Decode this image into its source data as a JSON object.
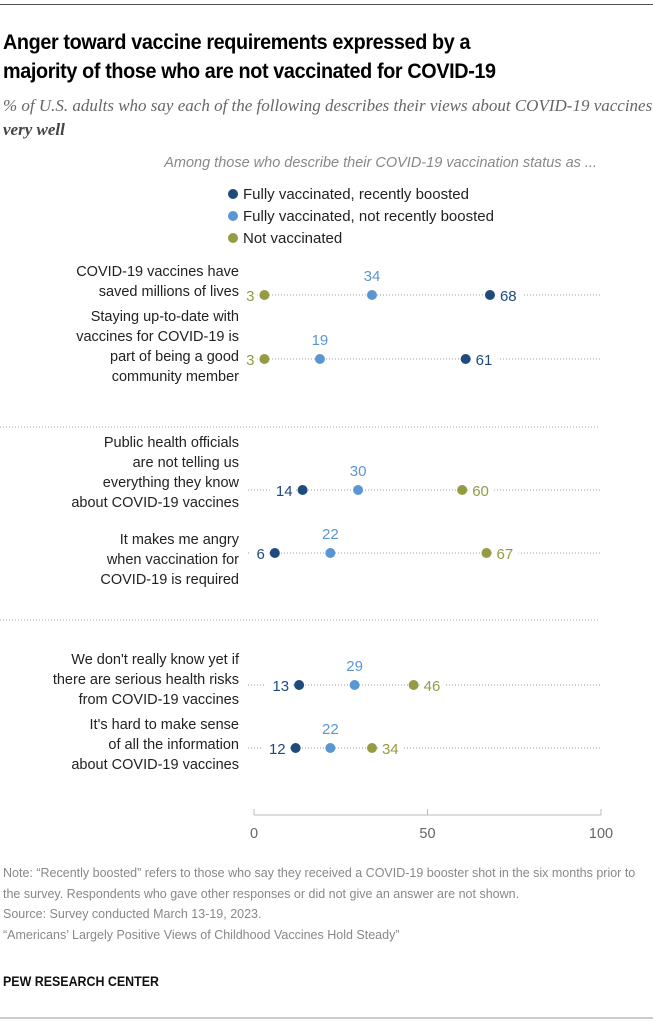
{
  "title": "Anger toward vaccine requirements expressed by a majority of those who are not vaccinated for COVID-19",
  "title_lines": [
    "Anger toward vaccine requirements expressed by a",
    "majority of those who are not vaccinated for COVID-19"
  ],
  "subtitle_prefix": "% of U.S. adults who say each of the following describes their views about COVID-19 vaccines ",
  "subtitle_bold": "very well",
  "legend_heading": "Among those who describe their COVID-19 vaccination status as ...",
  "colors": {
    "boosted": "#1f4a7c",
    "not_boosted": "#5b96d4",
    "not_vaccinated": "#949b43",
    "dots": "#999999"
  },
  "notes": {
    "note": "Note: “Recently boosted” refers to those who say they received a COVID-19 booster shot in the six months prior to the survey. Respondents who gave other responses or did not give an answer are not shown.",
    "source": "Source: Survey conducted March 13-19, 2023.",
    "report": "“Americans’ Largely Positive Views of Childhood Vaccines Hold Steady”",
    "brand": "PEW RESEARCH CENTER"
  },
  "chart_data": {
    "type": "scatter",
    "subtype": "dot-plot",
    "title": "Anger toward vaccine requirements expressed by a majority of those who are not vaccinated for COVID-19",
    "xlabel": "",
    "ylabel": "",
    "xlim": [
      0,
      100
    ],
    "xticks": [
      0,
      50,
      100
    ],
    "grid": false,
    "legend_position": "top",
    "series": [
      {
        "key": "boosted",
        "name": "Fully vaccinated, recently boosted"
      },
      {
        "key": "not_boosted",
        "name": "Fully vaccinated, not recently boosted"
      },
      {
        "key": "not_vaccinated",
        "name": "Not vaccinated"
      }
    ],
    "groups": [
      {
        "rows": [
          {
            "label": [
              "COVID-19 vaccines have",
              "saved millions of lives"
            ],
            "boosted": 68,
            "not_boosted": 34,
            "not_vaccinated": 3
          },
          {
            "label": [
              "Staying up-to-date with",
              "vaccines for COVID-19 is",
              "part of being a good",
              "community member"
            ],
            "boosted": 61,
            "not_boosted": 19,
            "not_vaccinated": 3
          }
        ]
      },
      {
        "rows": [
          {
            "label": [
              "Public health officials",
              "are not telling us",
              "everything they know",
              "about COVID-19 vaccines"
            ],
            "boosted": 14,
            "not_boosted": 30,
            "not_vaccinated": 60
          },
          {
            "label": [
              "It makes me angry",
              "when vaccination for",
              "COVID-19 is required"
            ],
            "boosted": 6,
            "not_boosted": 22,
            "not_vaccinated": 67
          }
        ]
      },
      {
        "rows": [
          {
            "label": [
              "We don't really know yet if",
              "there are serious health risks",
              "from COVID-19 vaccines"
            ],
            "boosted": 13,
            "not_boosted": 29,
            "not_vaccinated": 46
          },
          {
            "label": [
              "It's hard to make sense",
              "of all the information",
              "about COVID-19 vaccines"
            ],
            "boosted": 12,
            "not_boosted": 22,
            "not_vaccinated": 34
          }
        ]
      }
    ]
  }
}
